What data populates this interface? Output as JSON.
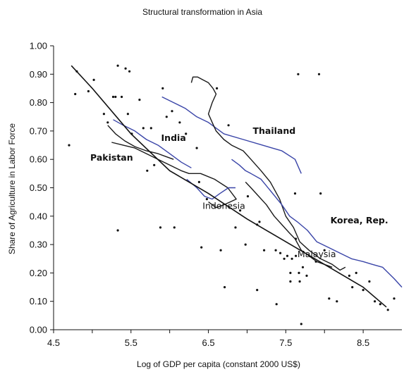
{
  "chart_data": {
    "type": "scatter",
    "title": "Structural transformation in Asia",
    "xlabel": "Log of GDP per capita (constant 2000 US$)",
    "ylabel": "Share of Agriculture in Labor Force",
    "xlim": [
      4.5,
      9.0
    ],
    "ylim": [
      0.0,
      1.0
    ],
    "xticks": [
      "4.5",
      "5.5",
      "6.5",
      "7.5",
      "8.5"
    ],
    "yticks": [
      "0.00",
      "0.10",
      "0.20",
      "0.30",
      "0.40",
      "0.50",
      "0.60",
      "0.70",
      "0.80",
      "0.90",
      "1.00"
    ],
    "grid": false,
    "legend": "none",
    "colors": {
      "points": "#111111",
      "fit": "#111111",
      "black_series": "#1a1a1a",
      "blue_series": "#3a45a8"
    },
    "annotations": [
      {
        "text": "Thailand",
        "x": 7.35,
        "y": 0.7,
        "bold": true
      },
      {
        "text": "India",
        "x": 6.05,
        "y": 0.675,
        "bold": true
      },
      {
        "text": "Pakistan",
        "x": 5.25,
        "y": 0.605,
        "bold": true
      },
      {
        "text": "Indonesia",
        "x": 6.7,
        "y": 0.435,
        "bold": false
      },
      {
        "text": "Korea, Rep.",
        "x": 8.45,
        "y": 0.385,
        "bold": true
      },
      {
        "text": "Malaysia",
        "x": 7.9,
        "y": 0.265,
        "bold": false
      }
    ],
    "scatter_points": [
      [
        4.7,
        0.65
      ],
      [
        4.78,
        0.83
      ],
      [
        4.8,
        0.91
      ],
      [
        4.95,
        0.84
      ],
      [
        5.02,
        0.88
      ],
      [
        5.15,
        0.76
      ],
      [
        5.2,
        0.73
      ],
      [
        5.27,
        0.82
      ],
      [
        5.3,
        0.82
      ],
      [
        5.33,
        0.93
      ],
      [
        5.43,
        0.92
      ],
      [
        5.48,
        0.91
      ],
      [
        5.38,
        0.82
      ],
      [
        5.46,
        0.76
      ],
      [
        5.51,
        0.69
      ],
      [
        5.61,
        0.81
      ],
      [
        5.66,
        0.71
      ],
      [
        5.76,
        0.71
      ],
      [
        5.71,
        0.56
      ],
      [
        5.8,
        0.58
      ],
      [
        5.91,
        0.85
      ],
      [
        5.96,
        0.75
      ],
      [
        6.03,
        0.77
      ],
      [
        6.13,
        0.73
      ],
      [
        6.21,
        0.69
      ],
      [
        6.35,
        0.64
      ],
      [
        6.38,
        0.52
      ],
      [
        6.48,
        0.46
      ],
      [
        5.33,
        0.35
      ],
      [
        5.88,
        0.36
      ],
      [
        6.06,
        0.36
      ],
      [
        6.41,
        0.29
      ],
      [
        6.66,
        0.28
      ],
      [
        6.71,
        0.15
      ],
      [
        6.85,
        0.36
      ],
      [
        6.98,
        0.3
      ],
      [
        7.13,
        0.37
      ],
      [
        7.22,
        0.28
      ],
      [
        7.13,
        0.14
      ],
      [
        7.37,
        0.28
      ],
      [
        7.38,
        0.09
      ],
      [
        7.43,
        0.27
      ],
      [
        7.48,
        0.25
      ],
      [
        7.52,
        0.26
      ],
      [
        7.56,
        0.2
      ],
      [
        7.56,
        0.17
      ],
      [
        7.58,
        0.25
      ],
      [
        7.63,
        0.32
      ],
      [
        7.63,
        0.26
      ],
      [
        7.62,
        0.48
      ],
      [
        7.67,
        0.2
      ],
      [
        7.72,
        0.22
      ],
      [
        7.68,
        0.17
      ],
      [
        7.7,
        0.02
      ],
      [
        7.77,
        0.19
      ],
      [
        7.89,
        0.24
      ],
      [
        7.93,
        0.9
      ],
      [
        7.66,
        0.9
      ],
      [
        7.95,
        0.48
      ],
      [
        8.06,
        0.11
      ],
      [
        8.16,
        0.1
      ],
      [
        8.32,
        0.19
      ],
      [
        8.36,
        0.15
      ],
      [
        8.41,
        0.2
      ],
      [
        8.5,
        0.14
      ],
      [
        8.58,
        0.17
      ],
      [
        8.65,
        0.1
      ],
      [
        8.72,
        0.09
      ],
      [
        8.82,
        0.07
      ],
      [
        8.9,
        0.11
      ],
      [
        6.61,
        0.85
      ],
      [
        6.76,
        0.72
      ],
      [
        6.91,
        0.42
      ],
      [
        7.01,
        0.47
      ],
      [
        7.16,
        0.38
      ],
      [
        8.0,
        0.28
      ]
    ],
    "fit_line": [
      [
        4.73,
        0.93
      ],
      [
        5.0,
        0.85
      ],
      [
        5.5,
        0.69
      ],
      [
        6.0,
        0.56
      ],
      [
        6.5,
        0.48
      ],
      [
        7.0,
        0.39
      ],
      [
        7.5,
        0.31
      ],
      [
        8.0,
        0.23
      ],
      [
        8.5,
        0.15
      ],
      [
        8.8,
        0.08
      ]
    ],
    "series": [
      {
        "values": [
          [
            5.27,
            0.74
          ],
          [
            5.4,
            0.72
          ],
          [
            5.55,
            0.7
          ],
          [
            5.7,
            0.67
          ],
          [
            5.85,
            0.65
          ],
          [
            6.0,
            0.62
          ],
          [
            6.15,
            0.59
          ],
          [
            6.28,
            0.57
          ]
        ],
        "color": "#3a45a8"
      },
      {
        "values": [
          [
            5.2,
            0.72
          ],
          [
            5.3,
            0.69
          ],
          [
            5.42,
            0.665
          ],
          [
            5.55,
            0.645
          ],
          [
            5.7,
            0.63
          ],
          [
            5.85,
            0.62
          ],
          [
            5.95,
            0.61
          ],
          [
            6.05,
            0.6
          ]
        ],
        "color": "#1a1a1a"
      },
      {
        "values": [
          [
            5.25,
            0.66
          ],
          [
            5.4,
            0.65
          ],
          [
            5.55,
            0.64
          ],
          [
            5.7,
            0.62
          ],
          [
            5.85,
            0.6
          ],
          [
            6.0,
            0.58
          ],
          [
            6.15,
            0.56
          ],
          [
            6.25,
            0.55
          ],
          [
            6.4,
            0.55
          ],
          [
            6.58,
            0.53
          ],
          [
            6.75,
            0.5
          ],
          [
            6.86,
            0.46
          ],
          [
            6.7,
            0.44
          ],
          [
            6.6,
            0.43
          ],
          [
            6.5,
            0.45
          ]
        ],
        "color": "#1a1a1a"
      },
      {
        "values": [
          [
            6.22,
            0.53
          ],
          [
            6.35,
            0.5
          ],
          [
            6.45,
            0.47
          ],
          [
            6.55,
            0.46
          ],
          [
            6.65,
            0.48
          ],
          [
            6.76,
            0.5
          ],
          [
            6.85,
            0.5
          ]
        ],
        "color": "#3a45a8"
      },
      {
        "values": [
          [
            5.9,
            0.82
          ],
          [
            6.05,
            0.8
          ],
          [
            6.2,
            0.78
          ],
          [
            6.35,
            0.75
          ],
          [
            6.5,
            0.73
          ],
          [
            6.7,
            0.69
          ],
          [
            6.95,
            0.67
          ],
          [
            7.2,
            0.65
          ],
          [
            7.45,
            0.63
          ],
          [
            7.62,
            0.6
          ],
          [
            7.7,
            0.55
          ]
        ],
        "color": "#3a45a8"
      },
      {
        "values": [
          [
            6.28,
            0.87
          ],
          [
            6.3,
            0.89
          ],
          [
            6.36,
            0.89
          ],
          [
            6.43,
            0.88
          ],
          [
            6.5,
            0.87
          ],
          [
            6.56,
            0.85
          ],
          [
            6.6,
            0.83
          ],
          [
            6.55,
            0.8
          ],
          [
            6.5,
            0.76
          ],
          [
            6.55,
            0.73
          ],
          [
            6.6,
            0.7
          ],
          [
            6.7,
            0.67
          ],
          [
            6.8,
            0.65
          ],
          [
            6.95,
            0.63
          ],
          [
            7.05,
            0.6
          ],
          [
            7.18,
            0.56
          ],
          [
            7.3,
            0.52
          ],
          [
            7.42,
            0.46
          ],
          [
            7.5,
            0.4
          ],
          [
            7.6,
            0.36
          ],
          [
            7.68,
            0.31
          ],
          [
            7.8,
            0.28
          ],
          [
            7.95,
            0.25
          ],
          [
            8.1,
            0.23
          ],
          [
            8.2,
            0.21
          ],
          [
            8.27,
            0.22
          ]
        ],
        "color": "#1a1a1a"
      },
      {
        "values": [
          [
            6.8,
            0.6
          ],
          [
            6.9,
            0.58
          ],
          [
            6.98,
            0.56
          ],
          [
            7.05,
            0.55
          ],
          [
            7.18,
            0.53
          ],
          [
            7.3,
            0.49
          ],
          [
            7.45,
            0.44
          ],
          [
            7.55,
            0.4
          ],
          [
            7.65,
            0.38
          ],
          [
            7.78,
            0.35
          ],
          [
            7.9,
            0.31
          ],
          [
            8.05,
            0.29
          ],
          [
            8.2,
            0.27
          ],
          [
            8.35,
            0.25
          ],
          [
            8.5,
            0.24
          ],
          [
            8.62,
            0.23
          ],
          [
            8.75,
            0.22
          ],
          [
            8.9,
            0.18
          ],
          [
            9.0,
            0.15
          ]
        ],
        "color": "#3a45a8"
      },
      {
        "values": [
          [
            6.98,
            0.52
          ],
          [
            7.05,
            0.5
          ],
          [
            7.15,
            0.47
          ],
          [
            7.25,
            0.44
          ],
          [
            7.35,
            0.4
          ],
          [
            7.45,
            0.37
          ],
          [
            7.55,
            0.34
          ],
          [
            7.62,
            0.32
          ],
          [
            7.7,
            0.28
          ],
          [
            7.8,
            0.26
          ],
          [
            7.9,
            0.24
          ],
          [
            8.0,
            0.23
          ],
          [
            8.1,
            0.22
          ]
        ],
        "color": "#1a1a1a"
      }
    ]
  }
}
